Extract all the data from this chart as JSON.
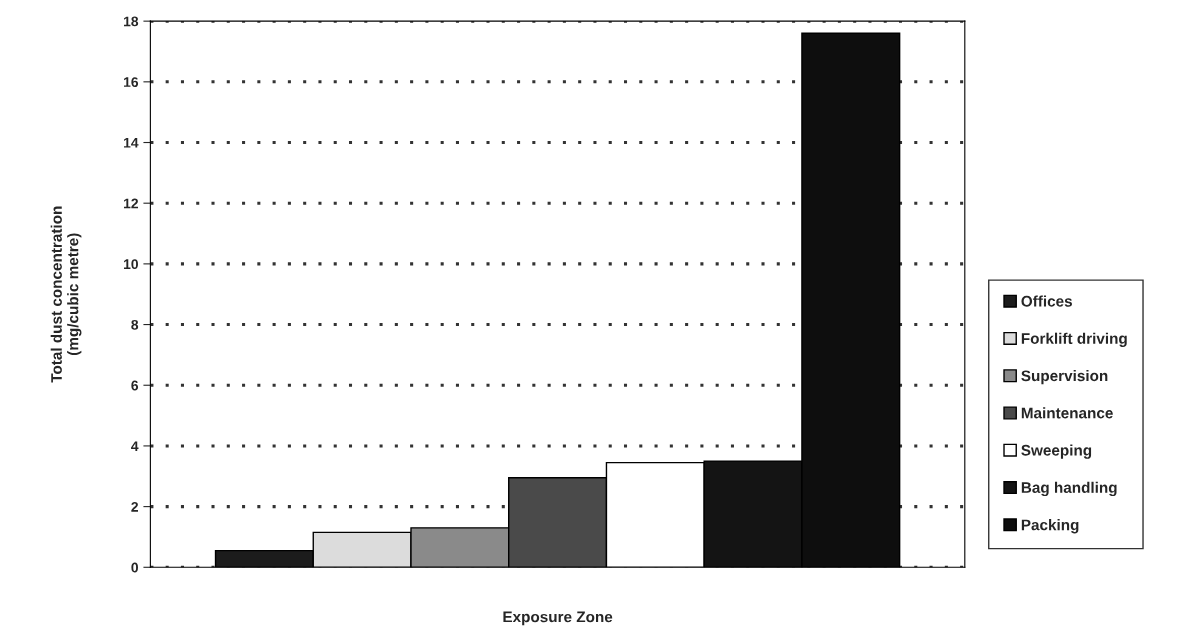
{
  "chart_data": {
    "type": "bar",
    "xlabel": "Exposure Zone",
    "ylabel": "Total dust concentration\n(mg/cubic metre)",
    "categories": [
      null
    ],
    "series": [
      {
        "name": "Offices",
        "color": "#1c1c1c",
        "values": [
          0.55
        ]
      },
      {
        "name": "Forklift driving",
        "color": "#dcdcdc",
        "values": [
          1.15
        ]
      },
      {
        "name": "Supervision",
        "color": "#8a8a8a",
        "values": [
          1.3
        ]
      },
      {
        "name": "Maintenance",
        "color": "#4a4a4a",
        "values": [
          2.95
        ]
      },
      {
        "name": "Sweeping",
        "color": "#ffffff",
        "values": [
          3.45
        ]
      },
      {
        "name": "Bag handling",
        "color": "#141414",
        "values": [
          3.5
        ]
      },
      {
        "name": "Packing",
        "color": "#0e0e0e",
        "values": [
          17.6
        ]
      }
    ],
    "ylim": [
      0,
      18
    ],
    "yticks": [
      0,
      2,
      4,
      6,
      8,
      10,
      12,
      14,
      16,
      18
    ],
    "grid": "y",
    "legend": "right"
  }
}
